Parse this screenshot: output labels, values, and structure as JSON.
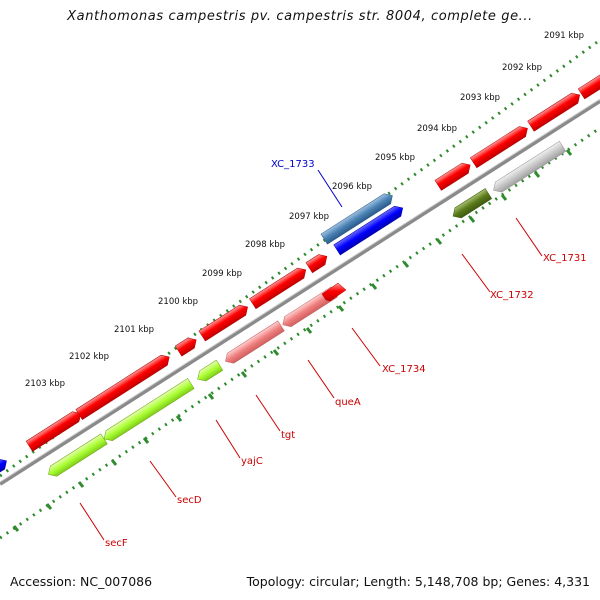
{
  "title": "Xanthomonas campestris pv. campestris str. 8004, complete ge...",
  "footer": {
    "accession": "Accession: NC_007086",
    "summary": "Topology: circular; Length: 5,148,708 bp; Genes: 4,331"
  },
  "colors": {
    "backbone": "#8a8a8a",
    "tick": "#2e8b2e",
    "forward_gene": "#ff0000",
    "reverse_gene": "#aaff33",
    "highlight_gene": "#0000ff",
    "label_red": "#cc0000",
    "label_blue": "#0000cc"
  },
  "ticks": [
    "2091 kbp",
    "2092 kbp",
    "2093 kbp",
    "2094 kbp",
    "2095 kbp",
    "2096 kbp",
    "2097 kbp",
    "2098 kbp",
    "2099 kbp",
    "2100 kbp",
    "2101 kbp",
    "2102 kbp",
    "2103 kbp"
  ],
  "gene_labels": [
    "XC_1733",
    "XC_1731",
    "XC_1732",
    "XC_1734",
    "queA",
    "tgt",
    "yajC",
    "secD",
    "secF"
  ]
}
